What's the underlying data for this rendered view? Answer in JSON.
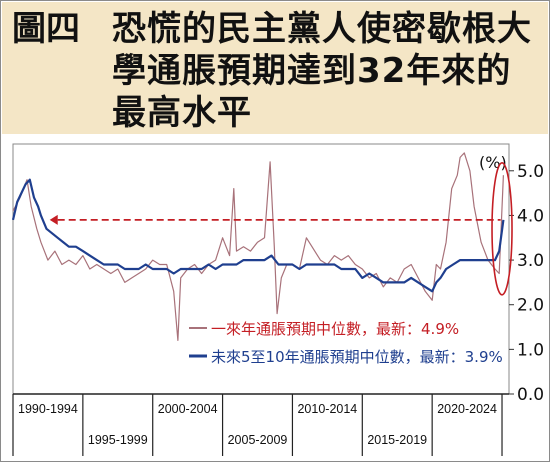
{
  "title": {
    "lead": "圖四",
    "text": "恐慌的民主黨人使密歇根大學通脹預期達到32年來的最高水平"
  },
  "chart_data": {
    "type": "line",
    "unit_label": "(%)",
    "y_ticks": [
      "0.0",
      "1.0",
      "2.0",
      "3.0",
      "4.0",
      "5.0"
    ],
    "ylim": [
      0,
      5.6
    ],
    "xlim": [
      1990,
      2025.5
    ],
    "year_bands": [
      {
        "label": "1990-1994",
        "start": 1990,
        "end": 1995,
        "row": "top"
      },
      {
        "label": "1995-1999",
        "start": 1995,
        "end": 2000,
        "row": "bottom"
      },
      {
        "label": "2000-2004",
        "start": 2000,
        "end": 2005,
        "row": "top"
      },
      {
        "label": "2005-2009",
        "start": 2005,
        "end": 2010,
        "row": "bottom"
      },
      {
        "label": "2010-2014",
        "start": 2010,
        "end": 2015,
        "row": "top"
      },
      {
        "label": "2015-2019",
        "start": 2015,
        "end": 2020,
        "row": "bottom"
      },
      {
        "label": "2020-2024",
        "start": 2020,
        "end": 2025,
        "row": "top"
      }
    ],
    "reference_level": 3.9,
    "series": [
      {
        "name": "一來年通脹預期中位數，最新：4.9%",
        "color": "#a8727a",
        "x": [
          1990,
          1990.5,
          1991,
          1991.3,
          1991.7,
          1992,
          1992.5,
          1993,
          1993.5,
          1994,
          1994.5,
          1995,
          1995.5,
          1996,
          1996.5,
          1997,
          1997.5,
          1998,
          1998.5,
          1999,
          1999.5,
          2000,
          2000.5,
          2001,
          2001.5,
          2001.8,
          2002,
          2002.5,
          2003,
          2003.5,
          2004,
          2004.5,
          2005,
          2005.5,
          2005.8,
          2006,
          2006.5,
          2007,
          2007.5,
          2008,
          2008.4,
          2008.7,
          2008.9,
          2009.2,
          2009.6,
          2010,
          2010.5,
          2011,
          2011.4,
          2012,
          2012.5,
          2013,
          2013.5,
          2014,
          2014.5,
          2015,
          2015.5,
          2016,
          2016.5,
          2017,
          2017.5,
          2018,
          2018.5,
          2019,
          2019.5,
          2020,
          2020.3,
          2020.6,
          2021,
          2021.4,
          2021.8,
          2022,
          2022.3,
          2022.7,
          2023,
          2023.5,
          2024,
          2024.5,
          2024.8,
          2025.1
        ],
        "values": [
          4.1,
          4.4,
          4.8,
          4.2,
          3.7,
          3.4,
          3.0,
          3.2,
          2.9,
          3.0,
          2.9,
          3.1,
          2.8,
          2.9,
          2.8,
          2.7,
          2.8,
          2.5,
          2.6,
          2.7,
          2.8,
          3.0,
          2.9,
          2.9,
          2.3,
          1.2,
          2.6,
          2.8,
          2.9,
          2.7,
          2.9,
          3.0,
          3.5,
          3.1,
          4.6,
          3.2,
          3.3,
          3.2,
          3.4,
          3.5,
          5.2,
          3.3,
          1.8,
          2.6,
          2.9,
          2.9,
          2.8,
          3.5,
          3.3,
          3.0,
          2.9,
          3.1,
          3.0,
          3.1,
          2.9,
          2.8,
          2.6,
          2.7,
          2.4,
          2.6,
          2.5,
          2.8,
          2.9,
          2.6,
          2.3,
          2.1,
          2.9,
          2.8,
          3.4,
          4.6,
          4.9,
          5.3,
          5.4,
          5.0,
          4.2,
          3.4,
          3.0,
          2.8,
          2.7,
          4.9
        ]
      },
      {
        "name": "未來5至10年通脹預期中位數，最新：3.9%",
        "color": "#1f3f8f",
        "x": [
          1990,
          1990.3,
          1990.6,
          1990.9,
          1991.2,
          1991.5,
          1991.8,
          1992,
          1992.4,
          1992.8,
          1993.2,
          1993.6,
          1994,
          1994.5,
          1995,
          1995.5,
          1996,
          1996.5,
          1997,
          1997.5,
          1998,
          1998.5,
          1999,
          1999.5,
          2000,
          2000.5,
          2001,
          2001.5,
          2002,
          2002.5,
          2003,
          2003.5,
          2004,
          2004.5,
          2005,
          2005.5,
          2006,
          2006.5,
          2007,
          2007.5,
          2008,
          2008.5,
          2009,
          2009.5,
          2010,
          2010.5,
          2011,
          2011.5,
          2012,
          2012.5,
          2013,
          2013.5,
          2014,
          2014.5,
          2015,
          2015.5,
          2016,
          2016.5,
          2017,
          2017.5,
          2018,
          2018.5,
          2019,
          2019.5,
          2020,
          2020.3,
          2020.6,
          2021,
          2021.5,
          2022,
          2022.5,
          2023,
          2023.5,
          2024,
          2024.5,
          2024.8,
          2025.1
        ],
        "values": [
          3.9,
          4.3,
          4.5,
          4.7,
          4.8,
          4.4,
          4.2,
          4.0,
          3.7,
          3.6,
          3.5,
          3.4,
          3.3,
          3.3,
          3.2,
          3.1,
          3.0,
          2.9,
          2.9,
          2.9,
          2.8,
          2.8,
          2.8,
          2.9,
          2.8,
          2.8,
          2.8,
          2.7,
          2.8,
          2.8,
          2.8,
          2.8,
          2.9,
          2.8,
          2.9,
          2.9,
          2.9,
          3.0,
          3.0,
          3.0,
          3.0,
          3.1,
          2.9,
          2.9,
          2.9,
          2.8,
          2.9,
          2.9,
          2.9,
          2.9,
          2.9,
          2.8,
          2.8,
          2.8,
          2.6,
          2.7,
          2.6,
          2.5,
          2.5,
          2.5,
          2.5,
          2.6,
          2.5,
          2.4,
          2.3,
          2.5,
          2.6,
          2.8,
          2.9,
          3.0,
          3.0,
          3.0,
          3.0,
          3.0,
          3.0,
          3.2,
          3.9
        ]
      }
    ],
    "legend": [
      {
        "text": "一來年通脹預期中位數，最新：4.9%",
        "color": "#c41e24",
        "marker": "#a8727a"
      },
      {
        "text": "未來5至10年通脹預期中位數，最新：3.9%",
        "color": "#1f3f8f",
        "marker": "#1f3f8f"
      }
    ]
  }
}
